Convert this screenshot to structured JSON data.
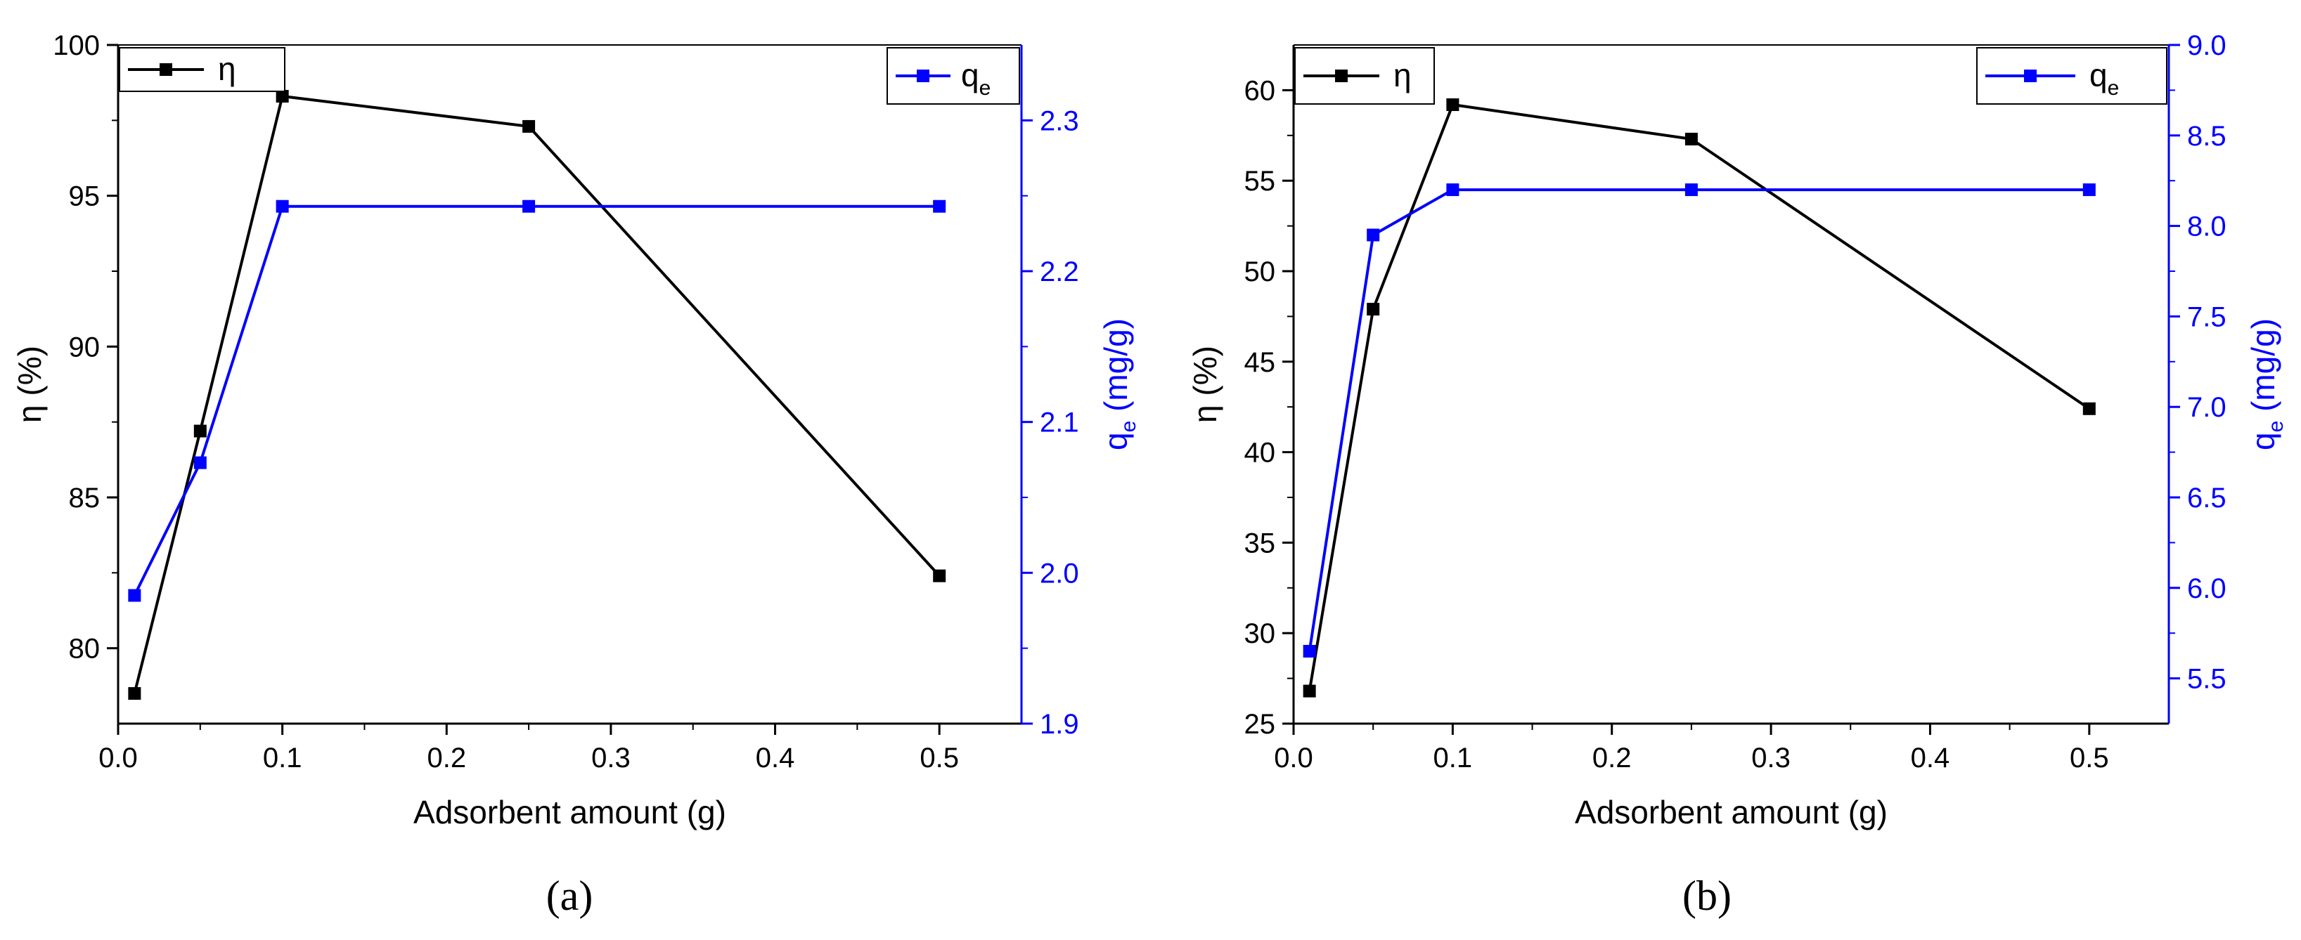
{
  "chart_data": [
    {
      "type": "line",
      "panel_label": "(a)",
      "xlabel": "Adsorbent amount (g)",
      "xlim": [
        0.0,
        0.55
      ],
      "xticks": [
        0.0,
        0.1,
        0.2,
        0.3,
        0.4,
        0.5
      ],
      "xtick_labels": [
        "0.0",
        "0.1",
        "0.2",
        "0.3",
        "0.4",
        "0.5"
      ],
      "left_axis": {
        "label": "η (%)",
        "ylim": [
          77.5,
          100
        ],
        "ticks": [
          80,
          85,
          90,
          95,
          100
        ],
        "tick_labels": [
          "80",
          "85",
          "90",
          "95",
          "100"
        ],
        "color": "#000000"
      },
      "right_axis": {
        "label_main": "q",
        "label_sub": "e",
        "label_rest": " (mg/g)",
        "ylim": [
          1.9,
          2.35
        ],
        "ticks": [
          1.9,
          2.0,
          2.1,
          2.2,
          2.3
        ],
        "tick_labels": [
          "1.9",
          "2.0",
          "2.1",
          "2.2",
          "2.3"
        ],
        "color": "#0000ff"
      },
      "series": [
        {
          "name": "η",
          "axis": "left",
          "color": "#000000",
          "x": [
            0.01,
            0.05,
            0.1,
            0.25,
            0.5
          ],
          "values": [
            78.5,
            87.2,
            98.3,
            97.3,
            82.4
          ]
        },
        {
          "name": "q",
          "name_sub": "e",
          "axis": "right",
          "color": "#0000ff",
          "x": [
            0.01,
            0.05,
            0.1,
            0.25,
            0.5
          ],
          "values": [
            1.985,
            2.073,
            2.243,
            2.243,
            2.243
          ]
        }
      ]
    },
    {
      "type": "line",
      "panel_label": "(b)",
      "xlabel": "Adsorbent amount (g)",
      "xlim": [
        0.0,
        0.55
      ],
      "xticks": [
        0.0,
        0.1,
        0.2,
        0.3,
        0.4,
        0.5
      ],
      "xtick_labels": [
        "0.0",
        "0.1",
        "0.2",
        "0.3",
        "0.4",
        "0.5"
      ],
      "left_axis": {
        "label": "η (%)",
        "ylim": [
          25,
          62.5
        ],
        "ticks": [
          25,
          30,
          35,
          40,
          45,
          50,
          55,
          60
        ],
        "tick_labels": [
          "25",
          "30",
          "35",
          "40",
          "45",
          "50",
          "55",
          "60"
        ],
        "color": "#000000"
      },
      "right_axis": {
        "label_main": "q",
        "label_sub": "e",
        "label_rest": " (mg/g)",
        "ylim": [
          5.25,
          9.0
        ],
        "ticks": [
          5.5,
          6.0,
          6.5,
          7.0,
          7.5,
          8.0,
          8.5,
          9.0
        ],
        "tick_labels": [
          "5.5",
          "6.0",
          "6.5",
          "7.0",
          "7.5",
          "8.0",
          "8.5",
          "9.0"
        ],
        "color": "#0000ff"
      },
      "series": [
        {
          "name": "η",
          "axis": "left",
          "color": "#000000",
          "x": [
            0.01,
            0.05,
            0.1,
            0.25,
            0.5
          ],
          "values": [
            26.8,
            47.9,
            59.2,
            57.3,
            42.4
          ]
        },
        {
          "name": "q",
          "name_sub": "e",
          "axis": "right",
          "color": "#0000ff",
          "x": [
            0.01,
            0.05,
            0.1,
            0.25,
            0.5
          ],
          "values": [
            5.65,
            7.95,
            8.2,
            8.2,
            8.2
          ]
        }
      ]
    }
  ]
}
